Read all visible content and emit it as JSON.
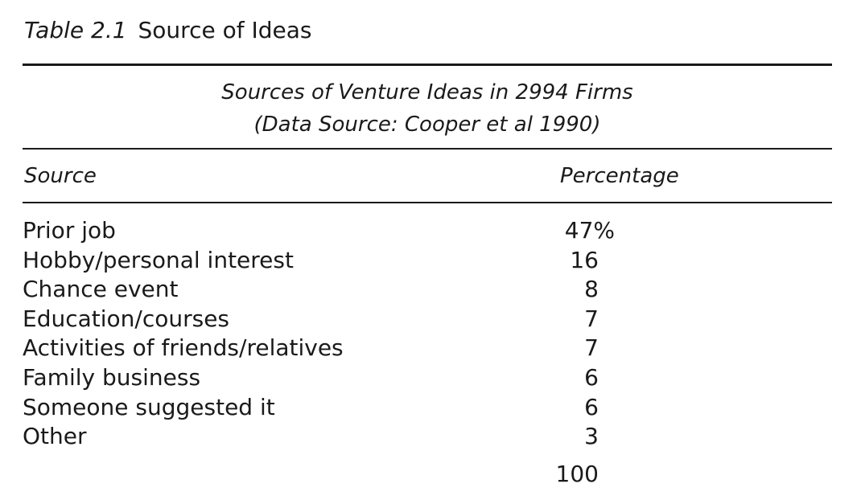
{
  "caption": {
    "label": "Table 2.1",
    "title": "Source of Ideas"
  },
  "subtitle": {
    "line1": "Sources of Venture Ideas in 2994 Firms",
    "line2": "(Data Source: Cooper et al 1990)"
  },
  "columns": {
    "source": "Source",
    "percentage": "Percentage"
  },
  "rows": [
    {
      "source": "Prior job",
      "percentage": "47%"
    },
    {
      "source": "Hobby/personal interest",
      "percentage": "16"
    },
    {
      "source": "Chance event",
      "percentage": "8"
    },
    {
      "source": "Education/courses",
      "percentage": "7"
    },
    {
      "source": "Activities of friends/relatives",
      "percentage": "7"
    },
    {
      "source": "Family business",
      "percentage": "6"
    },
    {
      "source": "Someone suggested it",
      "percentage": "6"
    },
    {
      "source": "Other",
      "percentage": "3"
    }
  ],
  "total": "100"
}
